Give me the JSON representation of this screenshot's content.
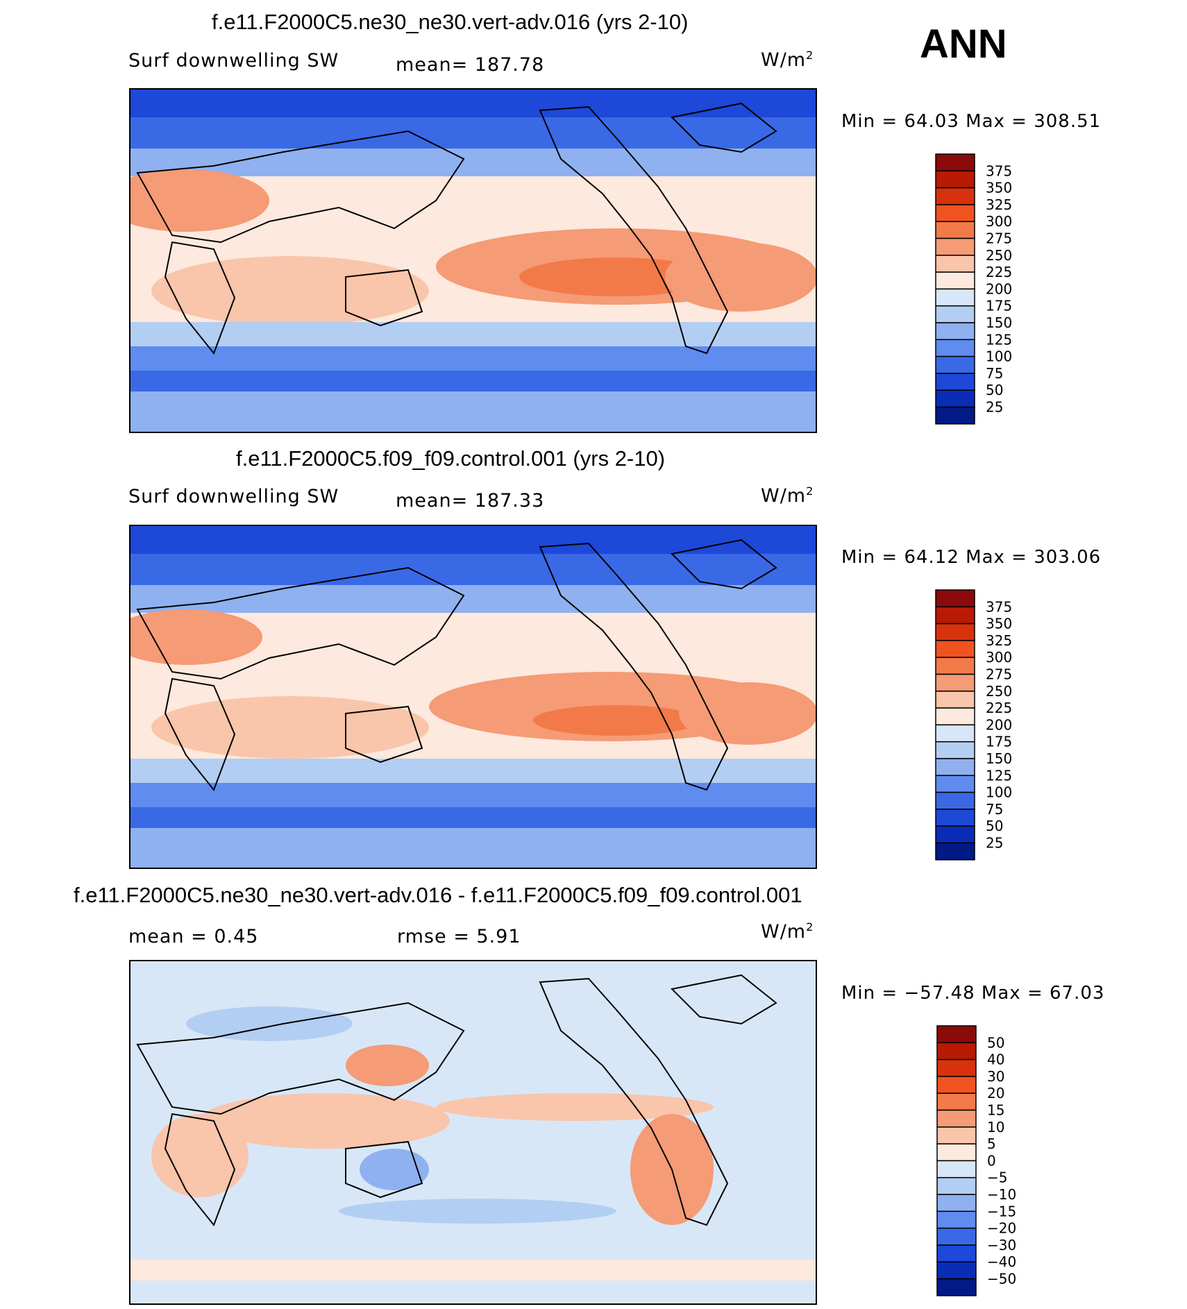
{
  "season": "ANN",
  "panels": [
    {
      "title": "f.e11.F2000C5.ne30_ne30.vert-adv.016 (yrs 2-10)",
      "left_label": "Surf downwelling SW",
      "center_label": "mean=  187.78",
      "unit_base": "W/m",
      "unit_exp": "2",
      "min_label": "Min  =    64.03  Max  =  308.51",
      "colorbar": {
        "labels": [
          "375",
          "350",
          "325",
          "300",
          "275",
          "250",
          "225",
          "200",
          "175",
          "150",
          "125",
          "100",
          "75",
          "50",
          "25"
        ],
        "colors": [
          "#8b0a0a",
          "#b81a05",
          "#d8320c",
          "#f15320",
          "#f27a48",
          "#f59b76",
          "#f9c5ab",
          "#fde9dd",
          "#d7e7f7",
          "#b3cef3",
          "#8fb1f0",
          "#5f8cee",
          "#3a69e6",
          "#1d48d8",
          "#0a2db8",
          "#021a86"
        ]
      }
    },
    {
      "title": "f.e11.F2000C5.f09_f09.control.001 (yrs 2-10)",
      "left_label": "Surf downwelling SW",
      "center_label": "mean=  187.33",
      "unit_base": "W/m",
      "unit_exp": "2",
      "min_label": "Min  =    64.12  Max  =  303.06",
      "colorbar": {
        "labels": [
          "375",
          "350",
          "325",
          "300",
          "275",
          "250",
          "225",
          "200",
          "175",
          "150",
          "125",
          "100",
          "75",
          "50",
          "25"
        ],
        "colors": [
          "#8b0a0a",
          "#b81a05",
          "#d8320c",
          "#f15320",
          "#f27a48",
          "#f59b76",
          "#f9c5ab",
          "#fde9dd",
          "#d7e7f7",
          "#b3cef3",
          "#8fb1f0",
          "#5f8cee",
          "#3a69e6",
          "#1d48d8",
          "#0a2db8",
          "#021a86"
        ]
      }
    },
    {
      "title": "f.e11.F2000C5.ne30_ne30.vert-adv.016 - f.e11.F2000C5.f09_f09.control.001",
      "left_label": "mean  =     0.45",
      "center_label": "rmse  =     5.91",
      "unit_base": "W/m",
      "unit_exp": "2",
      "min_label": "Min  =  −57.48  Max  =    67.03",
      "colorbar": {
        "labels": [
          "50",
          "40",
          "30",
          "20",
          "15",
          "10",
          "5",
          "0",
          "−5",
          "−10",
          "−15",
          "−20",
          "−30",
          "−40",
          "−50"
        ],
        "colors": [
          "#8b0a0a",
          "#b81a05",
          "#d8320c",
          "#f15320",
          "#f27a48",
          "#f59b76",
          "#f9c5ab",
          "#fde9dd",
          "#d7e7f7",
          "#b3cef3",
          "#8fb1f0",
          "#5f8cee",
          "#3a69e6",
          "#1d48d8",
          "#0a2db8",
          "#021a86"
        ]
      }
    }
  ]
}
